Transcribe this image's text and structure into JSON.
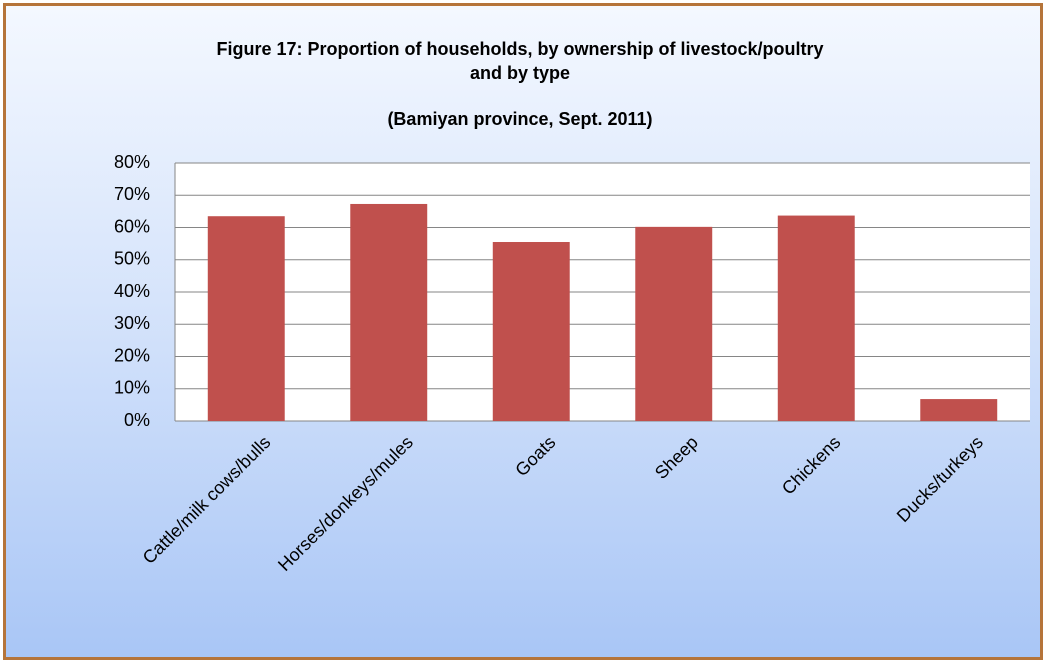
{
  "chart_data": {
    "type": "bar",
    "title": "Figure 17: Proportion of households, by ownership of livestock/poultry\nand by type",
    "subtitle": "(Bamiyan province, Sept. 2011)",
    "categories": [
      "Cattle/milk cows/bulls",
      "Horses/donkeys/mules",
      "Goats",
      "Sheep",
      "Chickens",
      "Ducks/turkeys"
    ],
    "values": [
      63.5,
      67.3,
      55.5,
      60.2,
      63.7,
      6.8
    ],
    "color": "#c0504d",
    "ylim": [
      0,
      80
    ],
    "yticks": [
      {
        "value": 0,
        "label": "0%"
      },
      {
        "value": 10,
        "label": "10%"
      },
      {
        "value": 20,
        "label": "20%"
      },
      {
        "value": 30,
        "label": "30%"
      },
      {
        "value": 40,
        "label": "40%"
      },
      {
        "value": 50,
        "label": "50%"
      },
      {
        "value": 60,
        "label": "60%"
      },
      {
        "value": 70,
        "label": "70%"
      },
      {
        "value": 80,
        "label": "80%"
      }
    ],
    "grid": true
  }
}
